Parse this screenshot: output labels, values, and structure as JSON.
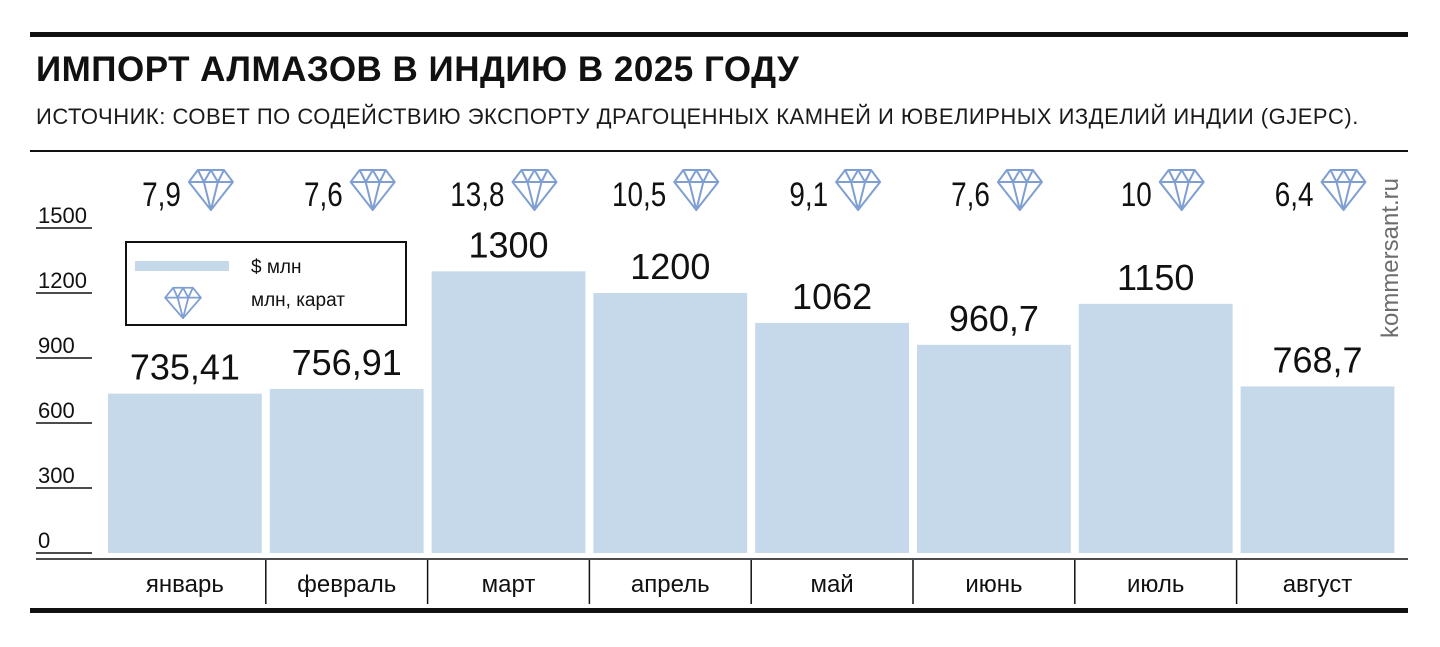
{
  "title": "ИМПОРТ АЛМАЗОВ В ИНДИЮ В 2025 ГОДУ",
  "subtitle": "ИСТОЧНИК: СОВЕТ ПО СОДЕЙСТВИЮ ЭКСПОРТУ ДРАГОЦЕННЫХ КАМНЕЙ И ЮВЕЛИРНЫХ ИЗДЕЛИЙ ИНДИИ (GJEPC).",
  "watermark": "kommersant.ru",
  "legend": {
    "usd_label": "$ млн",
    "carat_label": "млн, карат"
  },
  "colors": {
    "bar": "#c5d9ea",
    "diamond": "#7f9fd3",
    "rule": "#111111"
  },
  "icons": {
    "carat_marker": "diamond-icon"
  },
  "chart_data": {
    "type": "bar",
    "categories": [
      "январь",
      "февраль",
      "март",
      "апрель",
      "май",
      "июнь",
      "июль",
      "август"
    ],
    "series": [
      {
        "name": "$ млн",
        "values": [
          735.41,
          756.91,
          1300,
          1200,
          1062,
          960.7,
          1150,
          768.7
        ],
        "labels": [
          "735,41",
          "756,91",
          "1300",
          "1200",
          "1062",
          "960,7",
          "1150",
          "768,7"
        ]
      },
      {
        "name": "млн, карат",
        "values": [
          7.9,
          7.6,
          13.8,
          10.5,
          9.1,
          7.6,
          10,
          6.4
        ],
        "labels": [
          "7,9",
          "7,6",
          "13,8",
          "10,5",
          "9,1",
          "7,6",
          "10",
          "6,4"
        ]
      }
    ],
    "yticks": [
      0,
      300,
      600,
      900,
      1200,
      1500
    ],
    "ylim": [
      0,
      1500
    ],
    "legend_position": "top-left",
    "grid": false
  }
}
